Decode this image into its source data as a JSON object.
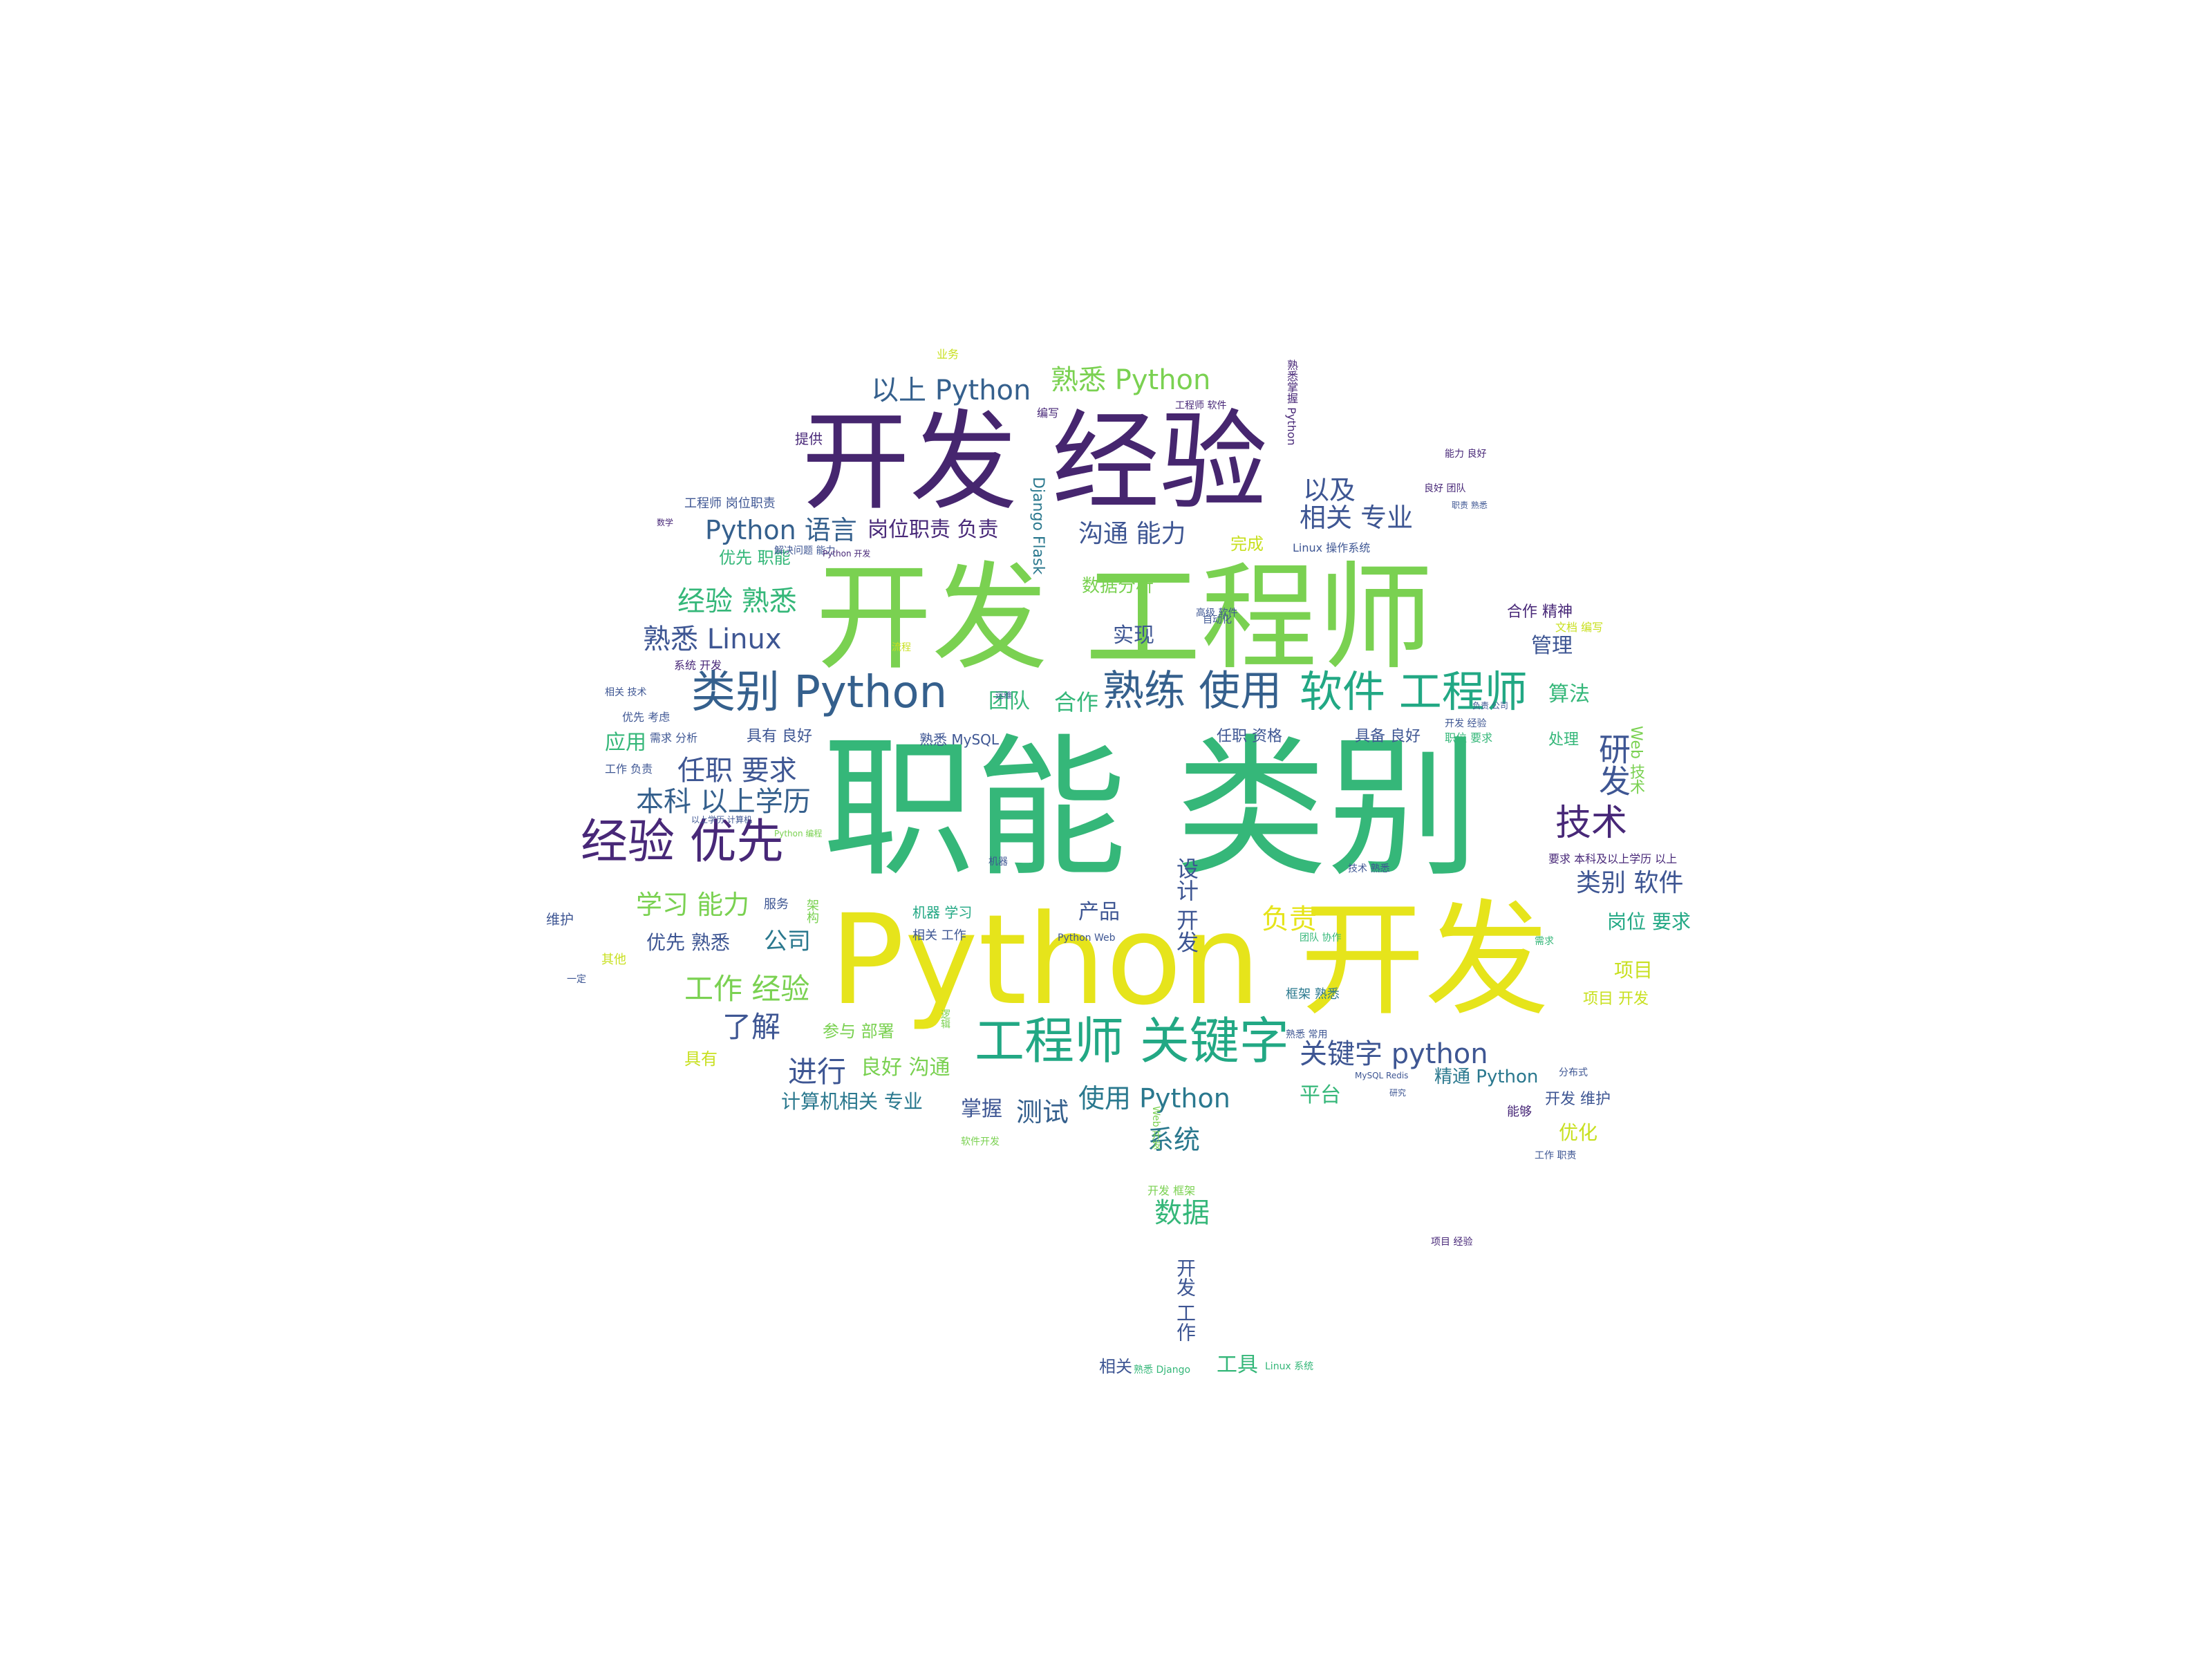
{
  "palette": {
    "dark_purple": "#46266f",
    "purple": "#482878",
    "blue": "#3e5693",
    "slate": "#35608d",
    "teal": "#2a788e",
    "green_teal": "#22a884",
    "green": "#35b779",
    "lime": "#7ad151",
    "yellow": "#e6e41b",
    "light_yellow": "#c8e020"
  },
  "words": [
    {
      "text": "职能 类别",
      "color": "green"
    },
    {
      "text": "Python 开发",
      "color": "yellow"
    },
    {
      "text": "开发 工程师",
      "color": "lime"
    },
    {
      "text": "开发 经验",
      "color": "dark_purple"
    },
    {
      "text": "类别 Python",
      "color": "slate"
    },
    {
      "text": "熟练 使用",
      "color": "slate"
    },
    {
      "text": "软件 工程师",
      "color": "green_teal"
    },
    {
      "text": "工程师 关键字",
      "color": "green_teal"
    },
    {
      "text": "经验 优先",
      "color": "purple"
    },
    {
      "text": "关键字 python",
      "color": "blue"
    },
    {
      "text": "以上 Python",
      "color": "slate"
    },
    {
      "text": "熟悉 Python",
      "color": "lime"
    },
    {
      "text": "Python 语言",
      "color": "slate"
    },
    {
      "text": "岗位职责 负责",
      "color": "purple"
    },
    {
      "text": "沟通 能力",
      "color": "blue"
    },
    {
      "text": "相关 专业",
      "color": "blue"
    },
    {
      "text": "以及",
      "color": "blue"
    },
    {
      "text": "经验 熟悉",
      "color": "green"
    },
    {
      "text": "熟悉 Linux",
      "color": "blue"
    },
    {
      "text": "任职 要求",
      "color": "blue"
    },
    {
      "text": "本科 以上学历",
      "color": "slate"
    },
    {
      "text": "技术",
      "color": "purple"
    },
    {
      "text": "研发",
      "color": "blue"
    },
    {
      "text": "学习 能力",
      "color": "lime"
    },
    {
      "text": "类别 软件",
      "color": "blue"
    },
    {
      "text": "负责",
      "color": "yellow"
    },
    {
      "text": "工作 经验",
      "color": "lime"
    },
    {
      "text": "了解",
      "color": "blue"
    },
    {
      "text": "进行",
      "color": "blue"
    },
    {
      "text": "测试",
      "color": "slate"
    },
    {
      "text": "使用 Python",
      "color": "teal"
    },
    {
      "text": "系统",
      "color": "teal"
    },
    {
      "text": "数据",
      "color": "green"
    },
    {
      "text": "团队",
      "color": "green"
    },
    {
      "text": "合作",
      "color": "green"
    },
    {
      "text": "算法",
      "color": "green"
    },
    {
      "text": "实现",
      "color": "blue"
    },
    {
      "text": "管理",
      "color": "blue"
    },
    {
      "text": "应用",
      "color": "green"
    },
    {
      "text": "公司",
      "color": "teal"
    },
    {
      "text": "优先 熟悉",
      "color": "blue"
    },
    {
      "text": "产品",
      "color": "blue"
    },
    {
      "text": "岗位 要求",
      "color": "green_teal"
    },
    {
      "text": "项目",
      "color": "light_yellow"
    },
    {
      "text": "项目 开发",
      "color": "light_yellow"
    },
    {
      "text": "参与 部署",
      "color": "lime"
    },
    {
      "text": "良好 沟通",
      "color": "lime"
    },
    {
      "text": "计算机相关 专业",
      "color": "teal"
    },
    {
      "text": "掌握",
      "color": "blue"
    },
    {
      "text": "平台",
      "color": "green"
    },
    {
      "text": "精通 Python",
      "color": "teal"
    },
    {
      "text": "开发 维护",
      "color": "blue"
    },
    {
      "text": "优化",
      "color": "light_yellow"
    },
    {
      "text": "具有",
      "color": "light_yellow"
    },
    {
      "text": "数据分析",
      "color": "lime"
    },
    {
      "text": "完成",
      "color": "light_yellow"
    },
    {
      "text": "优先 职能",
      "color": "green"
    },
    {
      "text": "具有 良好",
      "color": "blue"
    },
    {
      "text": "熟悉 MySQL",
      "color": "blue"
    },
    {
      "text": "任职 资格",
      "color": "blue"
    },
    {
      "text": "具备 良好",
      "color": "blue"
    },
    {
      "text": "合作 精神",
      "color": "purple"
    },
    {
      "text": "相关",
      "color": "blue"
    },
    {
      "text": "工具",
      "color": "green"
    },
    {
      "text": "提供",
      "color": "purple"
    },
    {
      "text": "Django Flask",
      "color": "teal"
    },
    {
      "text": "设计 开发",
      "color": "blue"
    },
    {
      "text": "开发 工作",
      "color": "blue"
    },
    {
      "text": "业务",
      "color": "light_yellow"
    },
    {
      "text": "编写",
      "color": "purple"
    },
    {
      "text": "框架 熟悉",
      "color": "teal"
    },
    {
      "text": "机器 学习",
      "color": "green_teal"
    },
    {
      "text": "相关 工作",
      "color": "blue"
    },
    {
      "text": "Web 技术",
      "color": "lime"
    },
    {
      "text": "处理",
      "color": "green"
    },
    {
      "text": "工程师 岗位职责",
      "color": "blue"
    },
    {
      "text": "Linux 操作系统",
      "color": "blue"
    },
    {
      "text": "维护",
      "color": "blue"
    },
    {
      "text": "其他",
      "color": "light_yellow"
    },
    {
      "text": "一定",
      "color": "blue"
    },
    {
      "text": "能够",
      "color": "purple"
    },
    {
      "text": "Python Web",
      "color": "blue"
    },
    {
      "text": "熟悉 常用",
      "color": "blue"
    },
    {
      "text": "开发 框架",
      "color": "lime"
    },
    {
      "text": "软件开发",
      "color": "lime"
    },
    {
      "text": "工作 职责",
      "color": "blue"
    },
    {
      "text": "分布式",
      "color": "blue"
    },
    {
      "text": "要求 本科及以上学历 以上",
      "color": "purple"
    },
    {
      "text": "技术 熟悉",
      "color": "blue"
    },
    {
      "text": "文档 编写",
      "color": "light_yellow"
    },
    {
      "text": "职位 要求",
      "color": "green"
    },
    {
      "text": "服务",
      "color": "blue"
    },
    {
      "text": "架构",
      "color": "lime"
    },
    {
      "text": "工作 负责",
      "color": "blue"
    },
    {
      "text": "需求 分析",
      "color": "blue"
    },
    {
      "text": "系统 开发",
      "color": "purple"
    },
    {
      "text": "优先 考虑",
      "color": "blue"
    },
    {
      "text": "相关 技术",
      "color": "blue"
    },
    {
      "text": "团队 协作",
      "color": "green"
    },
    {
      "text": "能力 良好",
      "color": "purple"
    },
    {
      "text": "解决问题 能力",
      "color": "blue"
    },
    {
      "text": "自动化",
      "color": "blue"
    },
    {
      "text": "高级 软件",
      "color": "blue"
    },
    {
      "text": "MySQL Redis",
      "color": "blue"
    },
    {
      "text": "研究",
      "color": "blue"
    },
    {
      "text": "熟悉 Django",
      "color": "green"
    },
    {
      "text": "Linux 系统",
      "color": "green"
    },
    {
      "text": "工程师 软件",
      "color": "purple"
    },
    {
      "text": "需求",
      "color": "green"
    },
    {
      "text": "数学",
      "color": "purple"
    },
    {
      "text": "职责 熟悉",
      "color": "blue"
    },
    {
      "text": "项目 经验",
      "color": "purple"
    },
    {
      "text": "良好 团队",
      "color": "purple"
    },
    {
      "text": "运维",
      "color": "blue"
    },
    {
      "text": "逻辑",
      "color": "lime"
    },
    {
      "text": "以上学历 计算机",
      "color": "blue"
    },
    {
      "text": "Python 编程",
      "color": "lime"
    },
    {
      "text": "熟悉掌握 Python",
      "color": "purple"
    },
    {
      "text": "流程",
      "color": "light_yellow"
    },
    {
      "text": "开发 经验",
      "color": "blue"
    },
    {
      "text": "负责 公司",
      "color": "blue"
    },
    {
      "text": "机器",
      "color": "blue"
    },
    {
      "text": "Python 开发",
      "color": "purple"
    },
    {
      "text": "Web 开发",
      "color": "lime"
    }
  ]
}
